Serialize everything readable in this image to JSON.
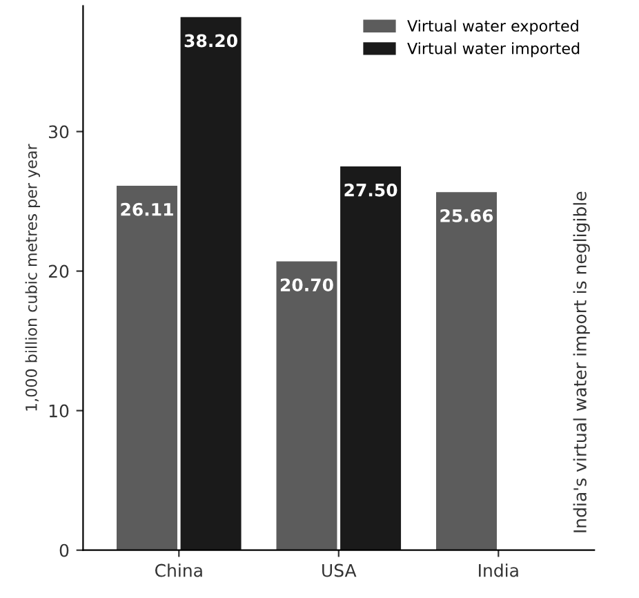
{
  "chart_data": {
    "type": "bar",
    "ylabel": "1,000 billion cubic metres per year",
    "categories": [
      "China",
      "USA",
      "India"
    ],
    "series": [
      {
        "name": "Virtual water exported",
        "color": "#5c5c5c",
        "values": [
          26.11,
          20.7,
          25.66
        ],
        "value_labels": [
          "26.11",
          "20.70",
          "25.66"
        ]
      },
      {
        "name": "Virtual water imported",
        "color": "#1a1a1a",
        "values": [
          38.2,
          27.5,
          null
        ],
        "value_labels": [
          "38.20",
          "27.50",
          null
        ]
      }
    ],
    "ylim": [
      0,
      39
    ],
    "yticks": [
      0,
      10,
      20,
      30
    ],
    "grid": false,
    "legend": "top right",
    "annotations": [
      "India's virtual water import is negligible"
    ]
  }
}
